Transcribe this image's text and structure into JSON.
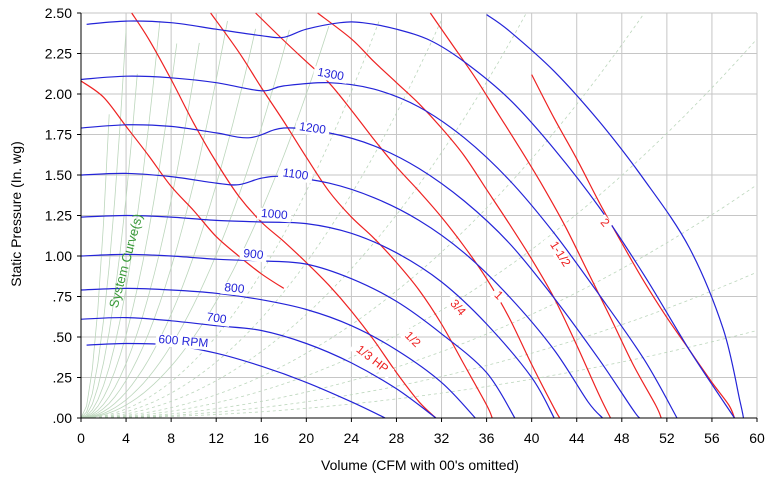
{
  "chart_data": {
    "type": "line",
    "title": "",
    "xlabel": "Volume (CFM with 00's omitted)",
    "ylabel": "Static Pressure (In. wg)",
    "xlim": [
      0,
      60
    ],
    "ylim": [
      0,
      2.5
    ],
    "grid": true,
    "x_ticks": [
      0,
      4,
      8,
      12,
      16,
      20,
      24,
      28,
      32,
      36,
      40,
      44,
      48,
      52,
      56,
      60
    ],
    "x_tick_labels": [
      "0",
      "4",
      "8",
      "12",
      "16",
      "20",
      "24",
      "28",
      "32",
      "36",
      "40",
      "44",
      "48",
      "52",
      "56",
      "60"
    ],
    "y_ticks": [
      0,
      0.25,
      0.5,
      0.75,
      1.0,
      1.25,
      1.5,
      1.75,
      2.0,
      2.25,
      2.5
    ],
    "y_tick_labels": [
      ".00",
      ".25",
      ".50",
      ".75",
      "1.00",
      "1.25",
      "1.50",
      "1.75",
      "2.00",
      "2.25",
      "2.50"
    ],
    "colors": {
      "rpm": "#2424d8",
      "hp": "#ee2222",
      "system": "#3a9a3a",
      "grid": "#c6c6c6",
      "system_faint": "#bcd6bc"
    },
    "system_curves_label": "System Curve(s)",
    "rpm_curves": [
      {
        "label": "600 RPM",
        "points": [
          [
            0.5,
            0.45
          ],
          [
            4,
            0.46
          ],
          [
            8,
            0.45
          ],
          [
            12,
            0.4
          ],
          [
            16,
            0.32
          ],
          [
            20,
            0.22
          ],
          [
            24,
            0.1
          ],
          [
            27,
            0.0
          ]
        ]
      },
      {
        "label": "700",
        "points": [
          [
            0,
            0.61
          ],
          [
            4,
            0.62
          ],
          [
            8,
            0.6
          ],
          [
            12,
            0.57
          ],
          [
            16,
            0.54
          ],
          [
            20,
            0.46
          ],
          [
            24,
            0.34
          ],
          [
            28,
            0.18
          ],
          [
            31.5,
            0.0
          ]
        ]
      },
      {
        "label": "800",
        "points": [
          [
            0,
            0.79
          ],
          [
            4,
            0.8
          ],
          [
            8,
            0.79
          ],
          [
            12,
            0.77
          ],
          [
            16,
            0.73
          ],
          [
            20,
            0.67
          ],
          [
            24,
            0.57
          ],
          [
            28,
            0.42
          ],
          [
            32,
            0.22
          ],
          [
            35,
            0.0
          ]
        ]
      },
      {
        "label": "900",
        "points": [
          [
            0,
            1.0
          ],
          [
            4,
            1.01
          ],
          [
            8,
            1.0
          ],
          [
            12,
            0.98
          ],
          [
            16,
            0.97
          ],
          [
            20,
            0.95
          ],
          [
            24,
            0.86
          ],
          [
            28,
            0.72
          ],
          [
            32,
            0.52
          ],
          [
            36,
            0.28
          ],
          [
            38.5,
            0.0
          ]
        ]
      },
      {
        "label": "1000",
        "points": [
          [
            0,
            1.24
          ],
          [
            4,
            1.25
          ],
          [
            8,
            1.24
          ],
          [
            12,
            1.22
          ],
          [
            16,
            1.21
          ],
          [
            20,
            1.2
          ],
          [
            24,
            1.14
          ],
          [
            28,
            1.02
          ],
          [
            32,
            0.84
          ],
          [
            36,
            0.58
          ],
          [
            40,
            0.25
          ],
          [
            42,
            0.0
          ]
        ]
      },
      {
        "label": "1100",
        "points": [
          [
            0,
            1.5
          ],
          [
            4,
            1.51
          ],
          [
            8,
            1.49
          ],
          [
            12,
            1.45
          ],
          [
            14,
            1.44
          ],
          [
            16,
            1.48
          ],
          [
            18,
            1.49
          ],
          [
            22,
            1.45
          ],
          [
            26,
            1.36
          ],
          [
            30,
            1.22
          ],
          [
            34,
            1.02
          ],
          [
            38,
            0.75
          ],
          [
            42,
            0.42
          ],
          [
            45,
            0.1
          ],
          [
            46.3,
            0.0
          ]
        ]
      },
      {
        "label": "1200",
        "points": [
          [
            0,
            1.79
          ],
          [
            4,
            1.81
          ],
          [
            8,
            1.8
          ],
          [
            12,
            1.76
          ],
          [
            15,
            1.73
          ],
          [
            18,
            1.79
          ],
          [
            22,
            1.76
          ],
          [
            26,
            1.68
          ],
          [
            30,
            1.54
          ],
          [
            34,
            1.34
          ],
          [
            38,
            1.08
          ],
          [
            42,
            0.74
          ],
          [
            46,
            0.36
          ],
          [
            49,
            0.05
          ],
          [
            49.6,
            0.0
          ]
        ]
      },
      {
        "label": "1300",
        "points": [
          [
            0,
            2.09
          ],
          [
            4,
            2.11
          ],
          [
            8,
            2.1
          ],
          [
            12,
            2.07
          ],
          [
            16,
            2.02
          ],
          [
            18,
            2.05
          ],
          [
            22,
            2.07
          ],
          [
            26,
            2.03
          ],
          [
            30,
            1.92
          ],
          [
            34,
            1.73
          ],
          [
            38,
            1.47
          ],
          [
            42,
            1.14
          ],
          [
            46,
            0.76
          ],
          [
            50,
            0.36
          ],
          [
            52.9,
            0.0
          ]
        ]
      },
      {
        "label": "",
        "points": [
          [
            0.5,
            2.43
          ],
          [
            4,
            2.45
          ],
          [
            8,
            2.44
          ],
          [
            12,
            2.4
          ],
          [
            16,
            2.36
          ],
          [
            18,
            2.35
          ],
          [
            20,
            2.4
          ],
          [
            23,
            2.44
          ],
          [
            25,
            2.44
          ],
          [
            28,
            2.4
          ],
          [
            31,
            2.33
          ],
          [
            34,
            2.2
          ],
          [
            38,
            1.97
          ],
          [
            42,
            1.66
          ],
          [
            46,
            1.3
          ],
          [
            50,
            0.88
          ],
          [
            54,
            0.42
          ],
          [
            58,
            0.0
          ]
        ]
      },
      {
        "label": "",
        "points": [
          [
            36,
            2.49
          ],
          [
            38,
            2.39
          ],
          [
            42,
            2.14
          ],
          [
            46,
            1.83
          ],
          [
            50,
            1.47
          ],
          [
            54,
            1.05
          ],
          [
            57,
            0.55
          ],
          [
            58.5,
            0.1
          ],
          [
            58.8,
            0.0
          ]
        ]
      }
    ],
    "hp_curves": [
      {
        "label": "",
        "points": [
          [
            0,
            2.08
          ],
          [
            2,
            1.98
          ],
          [
            4,
            1.8
          ],
          [
            6,
            1.62
          ],
          [
            8,
            1.43
          ],
          [
            10,
            1.28
          ],
          [
            12,
            1.12
          ],
          [
            14,
            1.0
          ],
          [
            16,
            0.89
          ],
          [
            18,
            0.8
          ]
        ]
      },
      {
        "label": "1/3 HP",
        "points": [
          [
            4.5,
            2.5
          ],
          [
            6,
            2.34
          ],
          [
            8,
            2.09
          ],
          [
            10,
            1.82
          ],
          [
            12,
            1.58
          ],
          [
            14,
            1.37
          ],
          [
            16,
            1.21
          ],
          [
            18,
            1.09
          ],
          [
            20,
            0.96
          ],
          [
            22,
            0.82
          ],
          [
            24,
            0.66
          ],
          [
            26,
            0.48
          ],
          [
            28,
            0.28
          ],
          [
            30,
            0.1
          ],
          [
            31.5,
            0.0
          ]
        ]
      },
      {
        "label": "1/2",
        "points": [
          [
            11.5,
            2.5
          ],
          [
            14,
            2.26
          ],
          [
            16,
            2.04
          ],
          [
            18,
            1.83
          ],
          [
            20,
            1.61
          ],
          [
            22,
            1.4
          ],
          [
            24,
            1.24
          ],
          [
            26,
            1.11
          ],
          [
            28,
            0.96
          ],
          [
            30,
            0.79
          ],
          [
            32,
            0.58
          ],
          [
            34,
            0.33
          ],
          [
            36,
            0.08
          ],
          [
            36.5,
            0.0
          ]
        ]
      },
      {
        "label": "3/4",
        "points": [
          [
            15.5,
            2.5
          ],
          [
            18,
            2.33
          ],
          [
            20,
            2.2
          ],
          [
            22,
            2.07
          ],
          [
            24,
            1.9
          ],
          [
            26,
            1.72
          ],
          [
            28,
            1.55
          ],
          [
            30,
            1.4
          ],
          [
            32,
            1.24
          ],
          [
            34,
            1.06
          ],
          [
            36,
            0.86
          ],
          [
            38,
            0.62
          ],
          [
            40,
            0.33
          ],
          [
            42,
            0.06
          ],
          [
            42.5,
            0.0
          ]
        ]
      },
      {
        "label": "1",
        "points": [
          [
            21,
            2.5
          ],
          [
            24,
            2.34
          ],
          [
            26,
            2.2
          ],
          [
            28,
            2.07
          ],
          [
            30,
            1.94
          ],
          [
            32,
            1.79
          ],
          [
            34,
            1.62
          ],
          [
            36,
            1.41
          ],
          [
            38,
            1.2
          ],
          [
            40,
            0.98
          ],
          [
            42,
            0.74
          ],
          [
            44,
            0.45
          ],
          [
            46,
            0.14
          ],
          [
            47,
            0.0
          ]
        ]
      },
      {
        "label": "1-1/2",
        "points": [
          [
            31,
            2.5
          ],
          [
            33,
            2.3
          ],
          [
            35,
            2.1
          ],
          [
            37,
            1.88
          ],
          [
            39,
            1.66
          ],
          [
            41,
            1.43
          ],
          [
            43,
            1.18
          ],
          [
            45,
            0.9
          ],
          [
            47,
            0.62
          ],
          [
            49,
            0.33
          ],
          [
            51,
            0.08
          ],
          [
            51.5,
            0.0
          ]
        ]
      },
      {
        "label": "2",
        "points": [
          [
            40,
            2.12
          ],
          [
            42,
            1.85
          ],
          [
            44,
            1.6
          ],
          [
            46,
            1.33
          ],
          [
            48,
            1.08
          ],
          [
            50,
            0.84
          ],
          [
            52,
            0.62
          ],
          [
            54,
            0.42
          ],
          [
            56,
            0.22
          ],
          [
            57.5,
            0.08
          ],
          [
            58,
            0.0
          ]
        ]
      }
    ]
  }
}
